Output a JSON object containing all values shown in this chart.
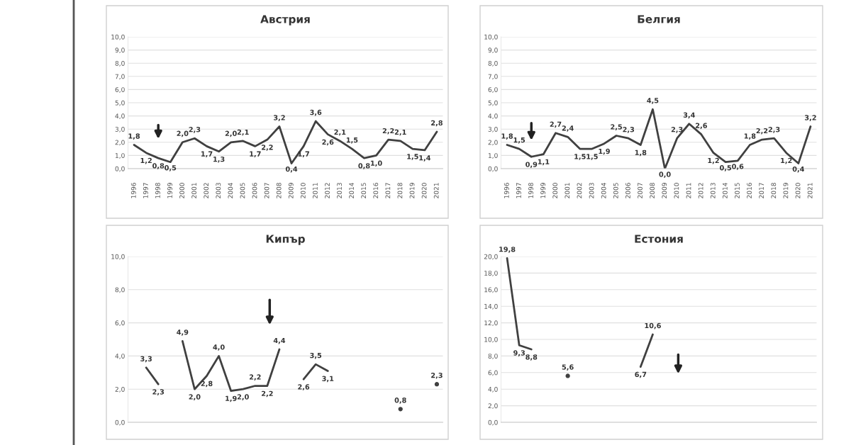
{
  "chart_data": [
    {
      "type": "line",
      "title": "Австрия",
      "categories": [
        "1996",
        "1997",
        "1998",
        "1999",
        "2000",
        "2001",
        "2002",
        "2003",
        "2004",
        "2005",
        "2006",
        "2007",
        "2008",
        "2009",
        "2010",
        "2011",
        "2012",
        "2013",
        "2014",
        "2015",
        "2016",
        "2017",
        "2018",
        "2019",
        "2020",
        "2021"
      ],
      "series": [
        {
          "color": "#404040",
          "values": [
            1.8,
            1.2,
            0.8,
            0.5,
            2.0,
            2.3,
            1.7,
            1.3,
            2.0,
            2.1,
            1.7,
            2.2,
            3.2,
            0.4,
            1.7,
            3.6,
            2.6,
            2.1,
            1.5,
            0.8,
            1.0,
            2.2,
            2.1,
            1.5,
            1.4,
            2.8
          ],
          "value_labels": [
            "1,8",
            "1,2",
            "0,8",
            "0,5",
            "2,0",
            "2,3",
            "1,7",
            "1,3",
            "2,0",
            "2,1",
            "1,7",
            "2,2",
            "3,2",
            "0,4",
            "1,7",
            "3,6",
            "2,6",
            "2,1",
            "1,5",
            "0,8",
            "1,0",
            "2,2",
            "2,1",
            "1,5",
            "1,4",
            "2,8"
          ]
        }
      ],
      "ylim": [
        0,
        10
      ],
      "yticks": [
        {
          "value": 0,
          "label": "0,0"
        },
        {
          "value": 1,
          "label": "1,0"
        },
        {
          "value": 2,
          "label": "2,0"
        },
        {
          "value": 3,
          "label": "3,0"
        },
        {
          "value": 4,
          "label": "4,0"
        },
        {
          "value": 5,
          "label": "5,0"
        },
        {
          "value": 6,
          "label": "6,0"
        },
        {
          "value": 7,
          "label": "7,0"
        },
        {
          "value": 8,
          "label": "8,0"
        },
        {
          "value": 9,
          "label": "9,0"
        },
        {
          "value": 10,
          "label": "10,0"
        }
      ],
      "grid": "y",
      "legend": false,
      "marker": "none",
      "line_style": "solid"
    },
    {
      "type": "line",
      "title": "Белгия",
      "categories": [
        "1996",
        "1997",
        "1998",
        "1999",
        "2000",
        "2001",
        "2002",
        "2003",
        "2004",
        "2005",
        "2006",
        "2007",
        "2008",
        "2009",
        "2010",
        "2011",
        "2012",
        "2013",
        "2014",
        "2015",
        "2016",
        "2017",
        "2018",
        "2019",
        "2020",
        "2021"
      ],
      "series": [
        {
          "color": "#404040",
          "values": [
            1.8,
            1.5,
            0.9,
            1.1,
            2.7,
            2.4,
            1.5,
            1.5,
            1.9,
            2.5,
            2.3,
            1.8,
            4.5,
            0.0,
            2.3,
            3.4,
            2.6,
            1.2,
            0.5,
            0.6,
            1.8,
            2.2,
            2.3,
            1.2,
            0.4,
            3.2
          ],
          "value_labels": [
            "1,8",
            "1,5",
            "0,9",
            "1,1",
            "2,7",
            "2,4",
            "1,5",
            "1,5",
            "1,9",
            "2,5",
            "2,3",
            "1,8",
            "4,5",
            "0,0",
            "2,3",
            "3,4",
            "2,6",
            "1,2",
            "0,5",
            "0,6",
            "1,8",
            "2,2",
            "2,3",
            "1,2",
            "0,4",
            "3,2"
          ]
        }
      ],
      "ylim": [
        0,
        10
      ],
      "yticks": [
        {
          "value": 0,
          "label": "0,0"
        },
        {
          "value": 1,
          "label": "1,0"
        },
        {
          "value": 2,
          "label": "2,0"
        },
        {
          "value": 3,
          "label": "3,0"
        },
        {
          "value": 4,
          "label": "4,0"
        },
        {
          "value": 5,
          "label": "5,0"
        },
        {
          "value": 6,
          "label": "6,0"
        },
        {
          "value": 7,
          "label": "7,0"
        },
        {
          "value": 8,
          "label": "8,0"
        },
        {
          "value": 9,
          "label": "9,0"
        },
        {
          "value": 10,
          "label": "10,0"
        }
      ],
      "grid": "y",
      "legend": false,
      "marker": "none",
      "line_style": "solid"
    },
    {
      "type": "line",
      "title": "Кипър",
      "categories": [
        null,
        null,
        null,
        null,
        null,
        null,
        null,
        null,
        null,
        null,
        null,
        null,
        null,
        null,
        null,
        null,
        null,
        null,
        null,
        null,
        null,
        null,
        null,
        null,
        null,
        null
      ],
      "series": [
        {
          "color": "#404040",
          "values": [
            null,
            3.3,
            2.3,
            null,
            4.9,
            2.0,
            2.8,
            4.0,
            1.9,
            2.0,
            2.2,
            2.2,
            4.4,
            null,
            2.6,
            3.5,
            3.1,
            null,
            null,
            null,
            null,
            null,
            0.8,
            null,
            null,
            2.3
          ],
          "value_labels": [
            null,
            "3,3",
            "2,3",
            null,
            "4,9",
            "2,0",
            "2,8",
            "4,0",
            "1,9",
            "2,0",
            "2,2",
            "2,2",
            "4,4",
            null,
            "2,6",
            "3,5",
            "3,1",
            null,
            null,
            null,
            null,
            null,
            "0,8",
            null,
            null,
            "2,3"
          ]
        }
      ],
      "ylim": [
        0,
        10
      ],
      "yticks": [
        {
          "value": 0,
          "label": "0,0"
        },
        {
          "value": 2,
          "label": "2,0"
        },
        {
          "value": 4,
          "label": "4,0"
        },
        {
          "value": 6,
          "label": "6,0"
        },
        {
          "value": 8,
          "label": "8,0"
        },
        {
          "value": 10,
          "label": "10,0"
        }
      ],
      "grid": "y",
      "legend": false,
      "marker": "none",
      "line_style": "solid"
    },
    {
      "type": "line",
      "title": "Естония",
      "categories": [
        null,
        null,
        null,
        null,
        null,
        null,
        null,
        null,
        null,
        null,
        null,
        null,
        null,
        null,
        null,
        null,
        null,
        null,
        null,
        null,
        null,
        null,
        null,
        null,
        null,
        null
      ],
      "series": [
        {
          "color": "#404040",
          "values": [
            19.8,
            9.3,
            8.8,
            null,
            null,
            5.6,
            null,
            null,
            null,
            null,
            null,
            6.7,
            10.6,
            null,
            null,
            null,
            null,
            null,
            null,
            null,
            null,
            null,
            null,
            null,
            null,
            null
          ],
          "value_labels": [
            "19,8",
            "9,3",
            "8,8",
            null,
            null,
            "5,6",
            null,
            null,
            null,
            null,
            null,
            "6,7",
            "10,6",
            null,
            null,
            null,
            null,
            null,
            null,
            null,
            null,
            null,
            null,
            null,
            null,
            null
          ]
        }
      ],
      "ylim": [
        0,
        20
      ],
      "yticks": [
        {
          "value": 0,
          "label": "0,0"
        },
        {
          "value": 2,
          "label": "2,0"
        },
        {
          "value": 4,
          "label": "4,0"
        },
        {
          "value": 6,
          "label": "6,0"
        },
        {
          "value": 8,
          "label": "8,0"
        },
        {
          "value": 10,
          "label": "10,0"
        },
        {
          "value": 12,
          "label": "12,0"
        },
        {
          "value": 14,
          "label": "14,0"
        },
        {
          "value": 16,
          "label": "16,0"
        },
        {
          "value": 18,
          "label": "18,0"
        },
        {
          "value": 20,
          "label": "20,0"
        }
      ],
      "grid": "y",
      "legend": false,
      "marker": "none",
      "line_style": "solid"
    }
  ]
}
